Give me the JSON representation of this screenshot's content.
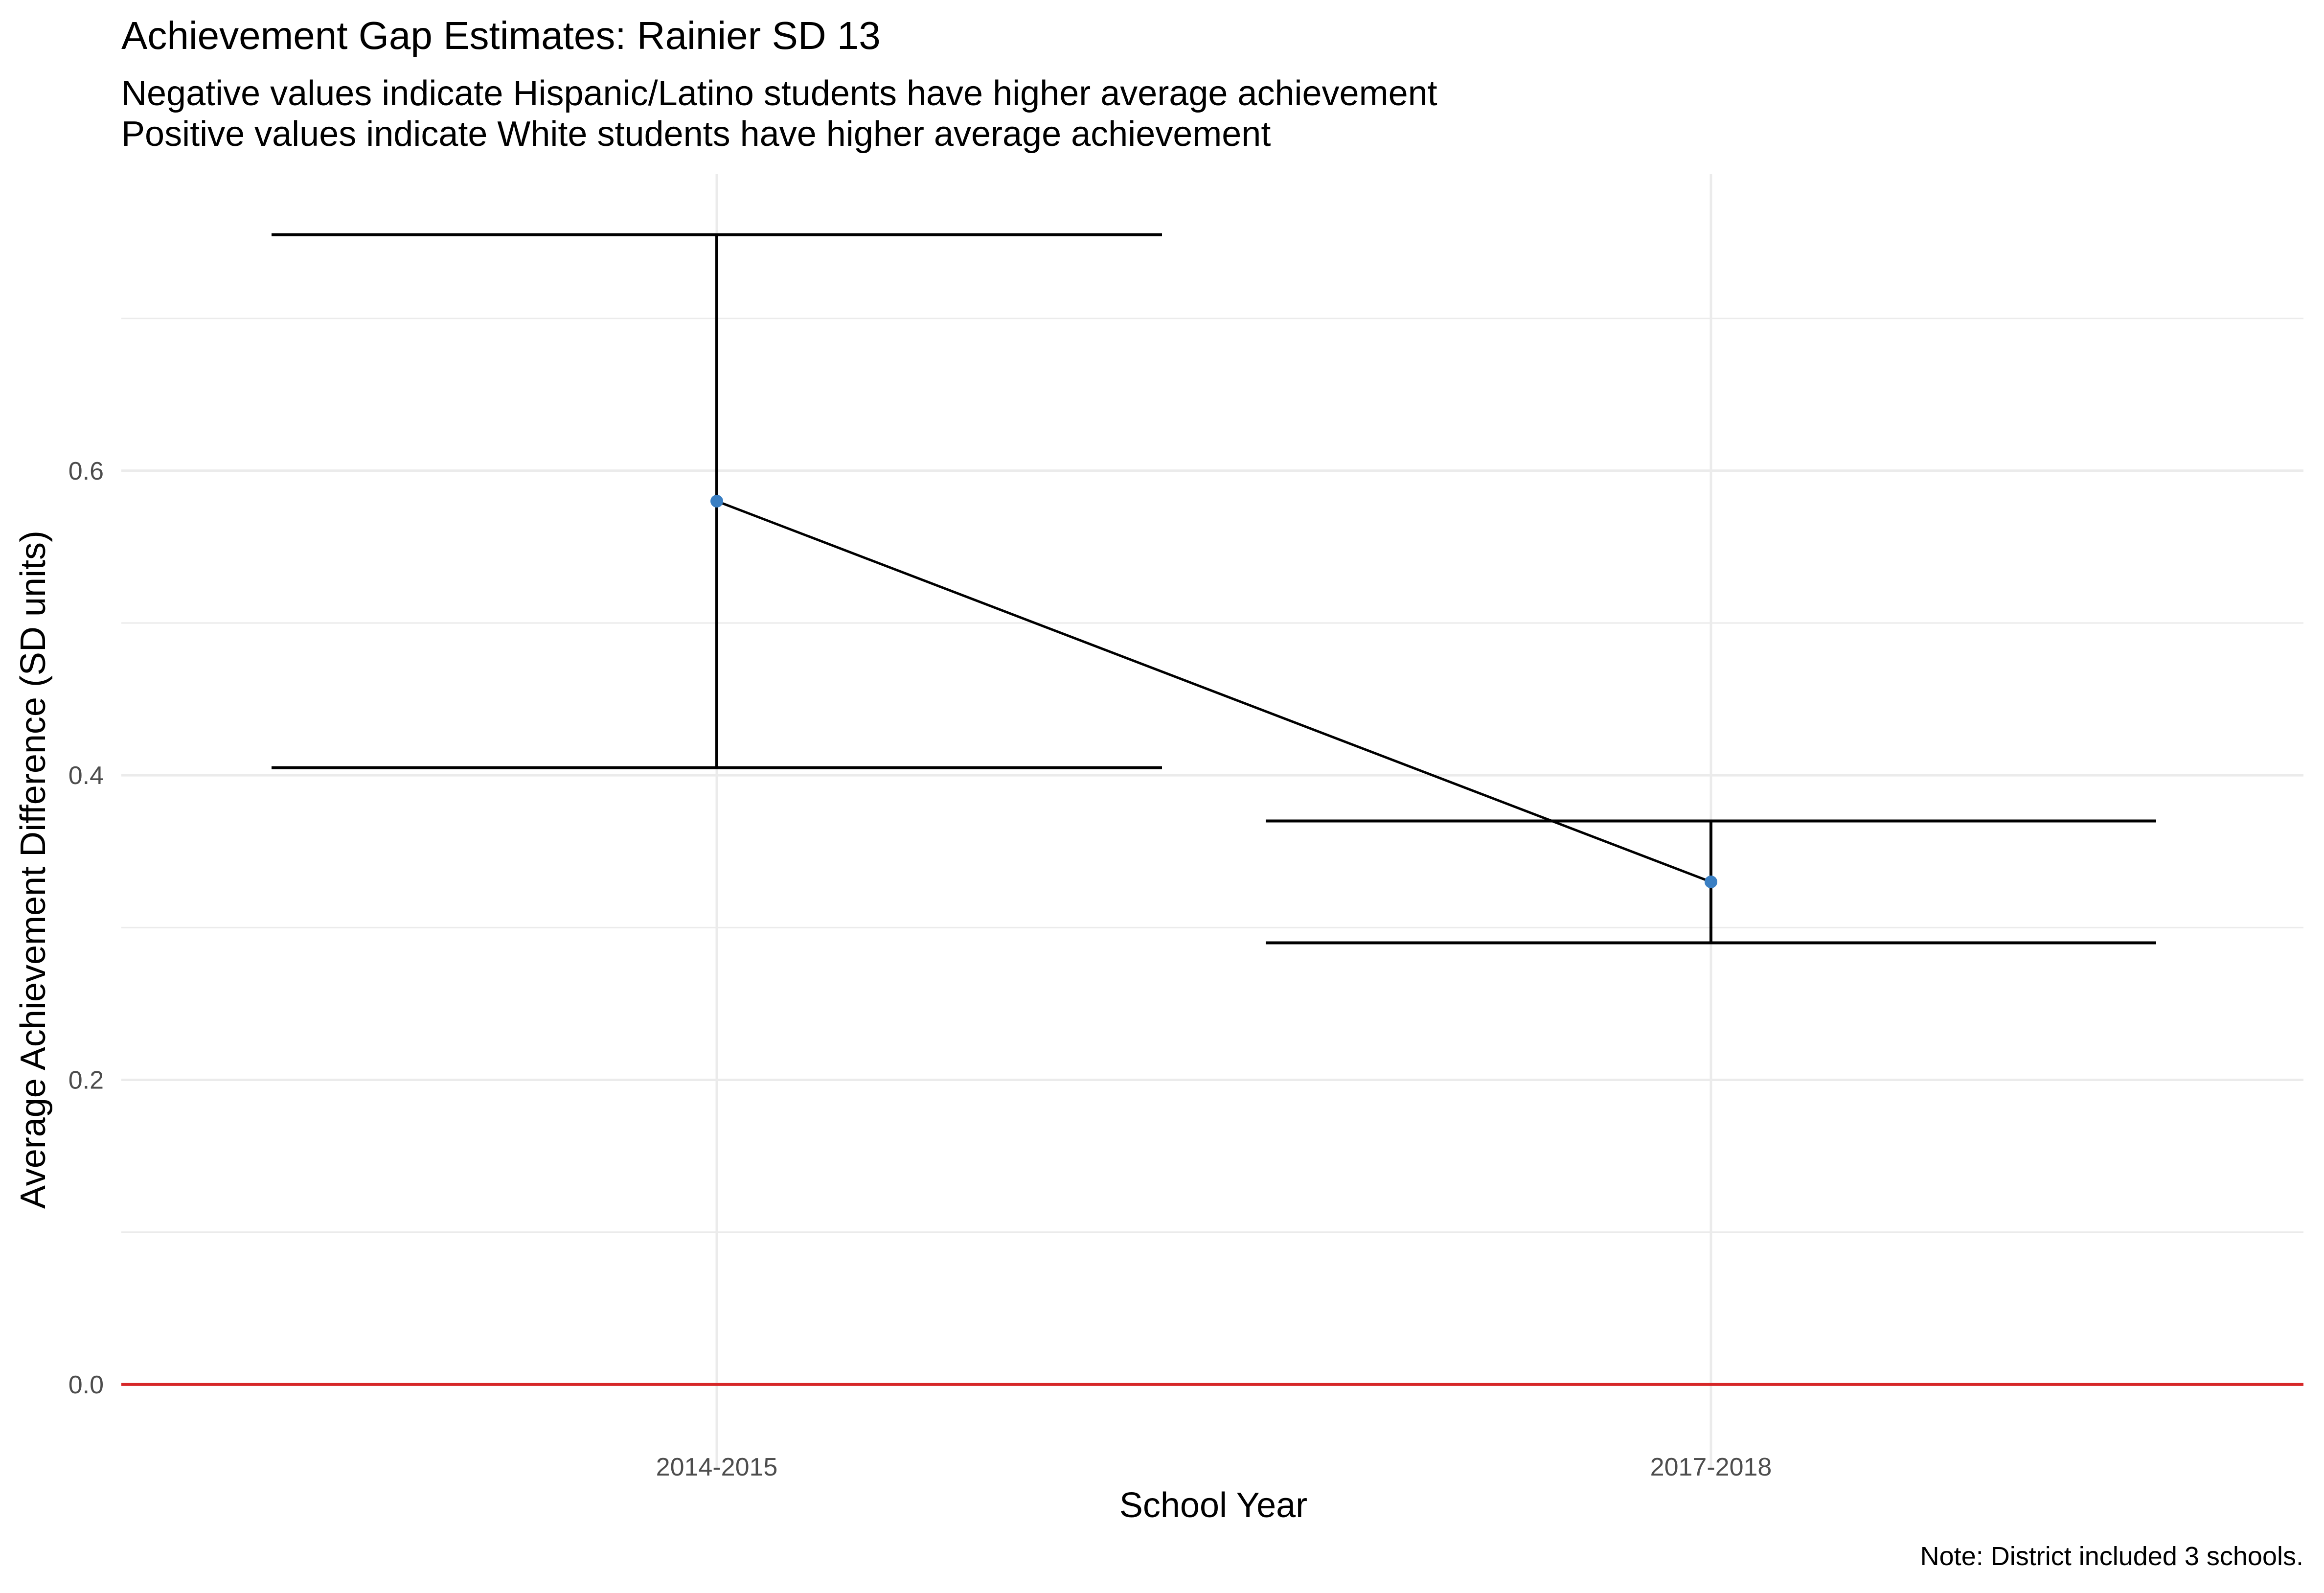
{
  "chart_data": {
    "type": "line",
    "title": "Achievement Gap Estimates: Rainier SD 13",
    "subtitle": [
      "Negative values indicate Hispanic/Latino students have higher average achievement",
      "Positive values indicate White students have higher average achievement"
    ],
    "xlabel": "School Year",
    "ylabel": "Average Achievement Difference (SD units)",
    "caption": "Note: District included 3 schools.",
    "categories": [
      "2014-2015",
      "2017-2018"
    ],
    "series": [
      {
        "values": [
          0.58,
          0.33
        ],
        "lower": [
          0.405,
          0.29
        ],
        "upper": [
          0.755,
          0.37
        ]
      }
    ],
    "ylim": [
      -0.055,
      0.795
    ],
    "yticks": [
      0.0,
      0.2,
      0.4,
      0.6
    ],
    "yticks_minor": [
      0.1,
      0.3,
      0.5,
      0.7
    ],
    "y_tick_labels": [
      "0.0",
      "0.2",
      "0.4",
      "0.6"
    ],
    "reference_line": {
      "y": 0.0
    },
    "grid": true,
    "legend": "none",
    "colors": {
      "point": "#3a7fc3",
      "line": "#000000",
      "errorbar": "#000000",
      "reference_line": "#d62728",
      "grid": "#ebebeb"
    }
  }
}
